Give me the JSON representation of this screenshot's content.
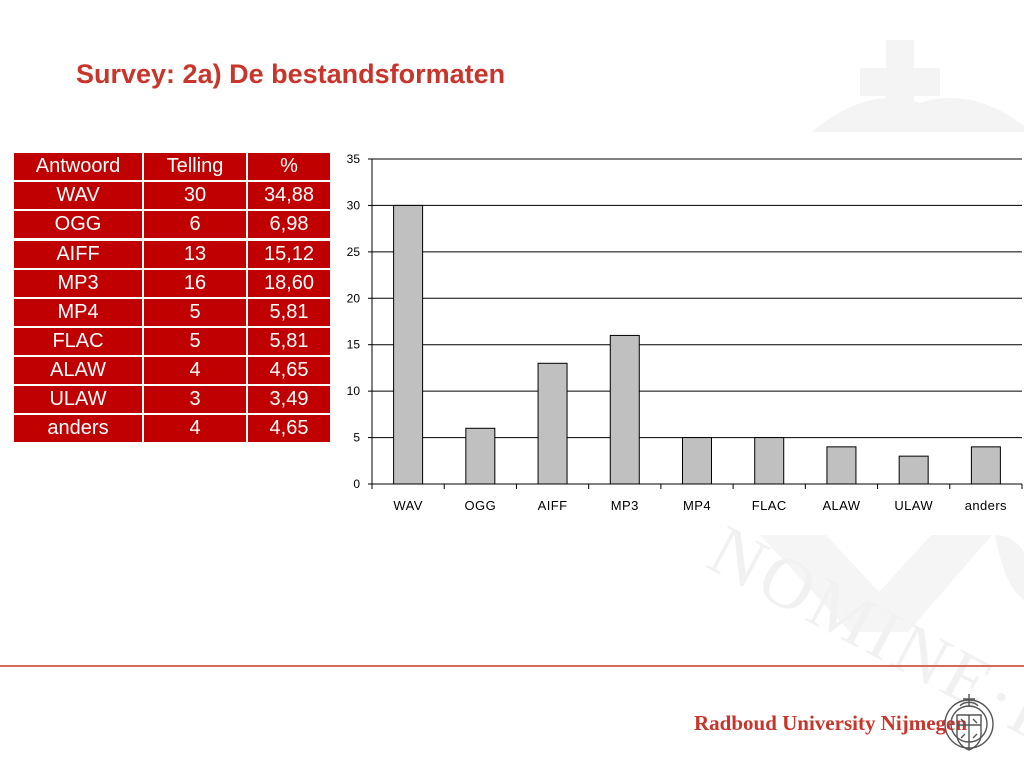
{
  "slide": {
    "title": "Survey: 2a) De bestandsformaten",
    "footer": {
      "university_name": "Radboud University Nijmegen",
      "logo_icon": "university-seal-icon"
    },
    "colors": {
      "title": "#c7352b",
      "table_background": "#c00000",
      "table_text": "#ffffff",
      "bar_fill": "#c0c0c0",
      "bar_stroke": "#000000",
      "footer_rule": "#d66a58",
      "watermark": "#f4f4f4"
    },
    "background_watermark": {
      "icon": "nomine-watermark-icon",
      "text": "NOMINE·F"
    }
  },
  "table": {
    "headers": [
      "Antwoord",
      "Telling",
      "%"
    ],
    "rows": [
      [
        "WAV",
        "30",
        "34,88"
      ],
      [
        "OGG",
        "6",
        "6,98"
      ],
      [
        "AIFF",
        "13",
        "15,12"
      ],
      [
        "MP3",
        "16",
        "18,60"
      ],
      [
        "MP4",
        "5",
        "5,81"
      ],
      [
        "FLAC",
        "5",
        "5,81"
      ],
      [
        "ALAW",
        "4",
        "4,65"
      ],
      [
        "ULAW",
        "3",
        "3,49"
      ],
      [
        "anders",
        "4",
        "4,65"
      ]
    ]
  },
  "chart_data": {
    "type": "bar",
    "title": "",
    "xlabel": "",
    "ylabel": "",
    "categories": [
      "WAV",
      "OGG",
      "AIFF",
      "MP3",
      "MP4",
      "FLAC",
      "ALAW",
      "ULAW",
      "anders"
    ],
    "values": [
      30,
      6,
      13,
      16,
      5,
      5,
      4,
      3,
      4
    ],
    "ylim": [
      0,
      35
    ],
    "yticks": [
      0,
      5,
      10,
      15,
      20,
      25,
      30,
      35
    ],
    "grid": true,
    "legend": "none"
  }
}
